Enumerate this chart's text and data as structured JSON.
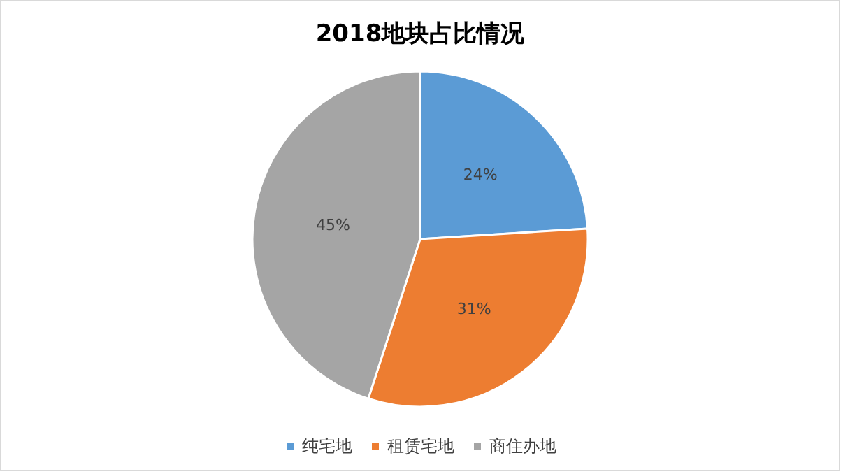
{
  "chart_data": {
    "type": "pie",
    "title": "2018地块占比情况",
    "categories": [
      "纯宅地",
      "租赁宅地",
      "商住办地"
    ],
    "values": [
      24,
      31,
      45
    ],
    "colors": [
      "#5b9bd5",
      "#ed7d31",
      "#a5a5a5"
    ],
    "value_labels": [
      "24%",
      "31%",
      "45%"
    ],
    "legend": "bottom"
  }
}
